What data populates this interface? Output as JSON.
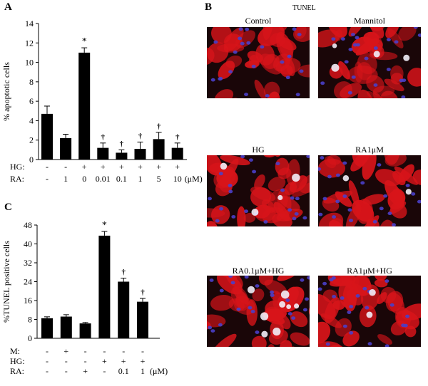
{
  "panels": {
    "a_letter": "A",
    "b_letter": "B",
    "c_letter": "C"
  },
  "chart_data": [
    {
      "type": "bar",
      "panel": "A",
      "ylabel": "% apoptotic cells",
      "ylim": [
        0,
        14
      ],
      "yticks": [
        0,
        2,
        4,
        6,
        8,
        10,
        12,
        14
      ],
      "values": [
        4.7,
        2.2,
        11.0,
        1.2,
        0.7,
        1.1,
        2.1,
        1.2
      ],
      "errors": [
        0.8,
        0.4,
        0.5,
        0.5,
        0.3,
        0.7,
        0.7,
        0.5
      ],
      "markers": [
        "",
        "",
        "*",
        "†",
        "†",
        "†",
        "†",
        "†"
      ],
      "conditions": [
        {
          "label": "HG:",
          "values": [
            "-",
            "-",
            "+",
            "+",
            "+",
            "+",
            "+",
            "+"
          ]
        },
        {
          "label": "RA:",
          "values": [
            "-",
            "1",
            "0",
            "0.01",
            "0.1",
            "1",
            "5",
            "10"
          ],
          "unit": "(μM)"
        }
      ]
    },
    {
      "type": "bar",
      "panel": "C",
      "ylabel": "%TUNEL positive cells",
      "ylim": [
        0,
        48
      ],
      "yticks": [
        0,
        8,
        16,
        24,
        32,
        40,
        48
      ],
      "values": [
        8.5,
        9.2,
        6.3,
        43.5,
        24.0,
        15.5
      ],
      "errors": [
        0.6,
        0.8,
        0.4,
        1.8,
        1.5,
        1.4
      ],
      "markers": [
        "",
        "",
        "",
        "*",
        "†",
        "†"
      ],
      "conditions": [
        {
          "label": "M:",
          "values": [
            "-",
            "+",
            "-",
            "-",
            "-",
            "-"
          ]
        },
        {
          "label": "HG:",
          "values": [
            "-",
            "-",
            "-",
            "+",
            "+",
            "+"
          ]
        },
        {
          "label": "RA:",
          "values": [
            "-",
            "-",
            "+",
            "-",
            "0.1",
            "1"
          ],
          "unit": "(μM)"
        }
      ]
    }
  ],
  "panel_b": {
    "title": "TUNEL",
    "images": [
      {
        "label": "Control"
      },
      {
        "label": "Mannitol"
      },
      {
        "label": "HG"
      },
      {
        "label": "RA1μM"
      },
      {
        "label": "RA0.1μM+HG"
      },
      {
        "label": "RA1μM+HG"
      }
    ],
    "colors": {
      "background": "#1a0608",
      "actin": "#d8141a",
      "nucleus": "#4a3fc8",
      "tunel": "#f2eef8"
    }
  }
}
